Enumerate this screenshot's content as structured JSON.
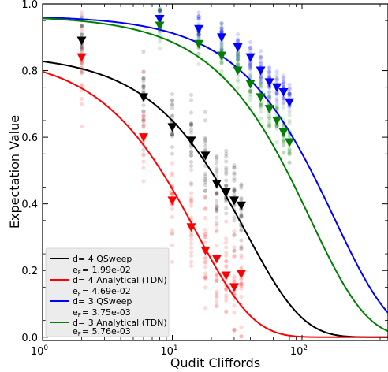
{
  "chart_data": {
    "type": "scatter",
    "xlabel": "Qudit Cliffords",
    "ylabel": "Expectation Value",
    "xscale": "log",
    "xlim": [
      1,
      460
    ],
    "ylim": [
      -0.01,
      1.0
    ],
    "x_ticks": [
      {
        "value": 1,
        "label": "10",
        "exp": "0"
      },
      {
        "value": 10,
        "label": "10",
        "exp": "1"
      },
      {
        "value": 100,
        "label": "10",
        "exp": "2"
      }
    ],
    "y_ticks": [
      {
        "value": 0.0,
        "label": "0.0"
      },
      {
        "value": 0.2,
        "label": "0.2"
      },
      {
        "value": 0.4,
        "label": "0.4"
      },
      {
        "value": 0.6,
        "label": "0.6"
      },
      {
        "value": 0.8,
        "label": "0.8"
      },
      {
        "value": 1.0,
        "label": "1.0"
      }
    ],
    "grid": false,
    "legend_position": "lower-left",
    "series": [
      {
        "name": "d= 4 QSweep",
        "ef_label": "e",
        "ef_sub": "F",
        "ef_value": "= 1.99e-02",
        "color": "#000000",
        "fit": {
          "A": 0.85,
          "p": 0.9735,
          "B": 0.0
        },
        "x": [
          2,
          6,
          10,
          14,
          18,
          22,
          26,
          30,
          34
        ],
        "y": [
          0.89,
          0.72,
          0.63,
          0.59,
          0.545,
          0.46,
          0.435,
          0.41,
          0.395
        ],
        "spread": 0.06
      },
      {
        "name": "d= 4 Analytical (TDN)",
        "ef_label": "e",
        "ef_sub": "F",
        "ef_value": "= 4.69e-02",
        "color": "#ff0000",
        "fit": {
          "A": 0.85,
          "p": 0.9373,
          "B": 0.0
        },
        "x": [
          2,
          6,
          10,
          14,
          18,
          22,
          26,
          30,
          34
        ],
        "y": [
          0.84,
          0.6,
          0.41,
          0.33,
          0.26,
          0.235,
          0.185,
          0.15,
          0.19
        ],
        "spread": 0.08
      },
      {
        "name": "d= 3 QSweep",
        "ef_label": "e",
        "ef_sub": "F",
        "ef_value": "= 3.75e-03",
        "color": "#0000ff",
        "fit": {
          "A": 0.965,
          "p": 0.99441,
          "B": 0.0
        },
        "x": [
          8,
          16,
          24,
          32,
          40,
          48,
          56,
          64,
          72,
          80
        ],
        "y": [
          0.955,
          0.925,
          0.9,
          0.87,
          0.84,
          0.8,
          0.765,
          0.75,
          0.735,
          0.705
        ],
        "spread": 0.025
      },
      {
        "name": "d= 3 Analytical (TDN)",
        "ef_label": "e",
        "ef_sub": "F",
        "ef_value": "= 5.76e-03",
        "color": "#008000",
        "fit": {
          "A": 0.965,
          "p": 0.9914,
          "B": 0.0
        },
        "x": [
          8,
          16,
          24,
          32,
          40,
          48,
          56,
          64,
          72,
          80
        ],
        "y": [
          0.935,
          0.88,
          0.845,
          0.8,
          0.76,
          0.72,
          0.685,
          0.65,
          0.615,
          0.585
        ],
        "spread": 0.035
      }
    ]
  }
}
